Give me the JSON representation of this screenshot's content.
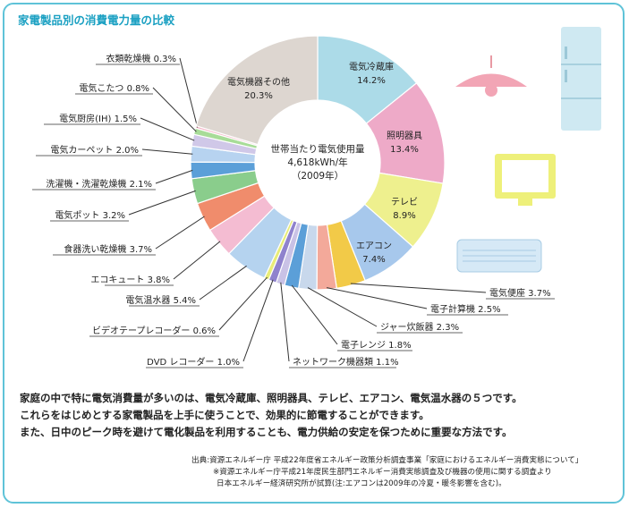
{
  "title": "家電製品別の消費電力量の比較",
  "chart_data": {
    "type": "pie",
    "title": "家電製品別の消費電力量の比較",
    "center_label": [
      "世帯当たり電気使用量",
      "4,618kWh/年",
      "（2009年）"
    ],
    "slices": [
      {
        "name": "電気冷蔵庫",
        "value": 14.2,
        "label": "14.2%",
        "color": "#acdbe8"
      },
      {
        "name": "照明器具",
        "value": 13.4,
        "label": "13.4%",
        "color": "#eeaac8"
      },
      {
        "name": "テレビ",
        "value": 8.9,
        "label": "8.9%",
        "color": "#eef08e"
      },
      {
        "name": "エアコン",
        "value": 7.4,
        "label": "7.4%",
        "color": "#a7c8ec"
      },
      {
        "name": "電気便座",
        "value": 3.7,
        "label": "電気便座 3.7%",
        "color": "#f2ca48"
      },
      {
        "name": "電子計算機",
        "value": 2.5,
        "label": "電子計算機 2.5%",
        "color": "#f3a99a"
      },
      {
        "name": "ジャー炊飯器",
        "value": 2.3,
        "label": "ジャー炊飯器 2.3%",
        "color": "#c8d8ec"
      },
      {
        "name": "電子レンジ",
        "value": 1.8,
        "label": "電子レンジ 1.8%",
        "color": "#5b9fd8"
      },
      {
        "name": "ネットワーク機器類",
        "value": 1.1,
        "label": "ネットワーク機器類 1.1%",
        "color": "#c9c2e6"
      },
      {
        "name": "DVD レコーダー",
        "value": 1.0,
        "label": "DVD レコーダー 1.0%",
        "color": "#8f82cd"
      },
      {
        "name": "ビデオテープレコーダー",
        "value": 0.6,
        "label": "ビデオテープレコーダー 0.6%",
        "color": "#e8ec78"
      },
      {
        "name": "電気温水器",
        "value": 5.4,
        "label": "電気温水器 5.4%",
        "color": "#b5d3ef"
      },
      {
        "name": "エコキュート",
        "value": 3.8,
        "label": "エコキュート 3.8%",
        "color": "#f4bcd2"
      },
      {
        "name": "食器洗い乾燥機",
        "value": 3.7,
        "label": "食器洗い乾燥機 3.7%",
        "color": "#f08c6c"
      },
      {
        "name": "電気ポット",
        "value": 3.2,
        "label": "電気ポット 3.2%",
        "color": "#8acd8c"
      },
      {
        "name": "洗濯機・洗濯乾燥機",
        "value": 2.1,
        "label": "洗濯機・洗濯乾燥機 2.1%",
        "color": "#5b9fd8"
      },
      {
        "name": "電気カーペット",
        "value": 2.0,
        "label": "電気カーペット 2.0%",
        "color": "#b7d3f0"
      },
      {
        "name": "電気厨房(IH)",
        "value": 1.5,
        "label": "電気厨房(IH) 1.5%",
        "color": "#d0c8e8"
      },
      {
        "name": "電気こたつ",
        "value": 0.8,
        "label": "電気こたつ 0.8%",
        "color": "#a8dc98"
      },
      {
        "name": "衣類乾燥機",
        "value": 0.3,
        "label": "衣類乾燥機 0.3%",
        "color": "#f4b8c8"
      },
      {
        "name": "電気機器その他",
        "value": 20.3,
        "label": "20.3%",
        "color": "#ddd6d0"
      }
    ]
  },
  "description": [
    "家庭の中で特に電気消費量が多いのは、電気冷蔵庫、照明器具、テレビ、エアコン、電気温水器の５つです。",
    "これらをはじめとする家電製品を上手に使うことで、効果的に節電することができます。",
    "また、日中のピーク時を避けて電化製品を利用することも、電力供給の安定を保つために重要な方法です。"
  ],
  "source": [
    "出典:資源エネルギー庁 平成22年度省エネルギー政策分析調査事業「家庭におけるエネルギー消費実態について」",
    "※資源エネルギー庁平成21年度民生部門エネルギー消費実態調査及び機器の使用に関する調査より",
    "日本エネルギー経済研究所が試算(注:エアコンは2009年の冷夏・暖冬影響を含む)。"
  ],
  "icons": [
    "ceiling-lamp-icon",
    "refrigerator-icon",
    "television-icon",
    "air-conditioner-icon"
  ]
}
